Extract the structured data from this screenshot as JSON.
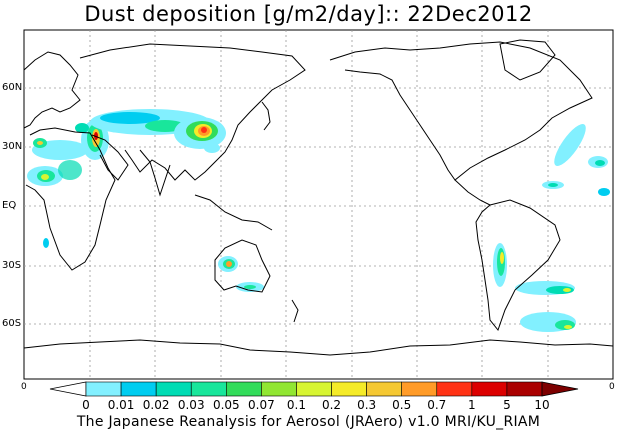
{
  "title": "Dust deposition [g/m2/day]:: 22Dec2012",
  "credit": "The Japanese Reanalysis for Aerosol (JRAero) v1.0 MRI/KU_RIAM",
  "lat_labels": [
    "60N",
    "30N",
    "EQ",
    "30S",
    "60S"
  ],
  "edge_labels": {
    "left": "0",
    "right": "0"
  },
  "colorbar": {
    "labels": [
      "0",
      "0.01",
      "0.02",
      "0.03",
      "0.05",
      "0.07",
      "0.1",
      "0.2",
      "0.3",
      "0.5",
      "0.7",
      "1",
      "5",
      "10"
    ],
    "colors": [
      "#ffffff",
      "#82f0ff",
      "#00cdf0",
      "#00dcb4",
      "#19e69b",
      "#32dc5a",
      "#91e632",
      "#d7f532",
      "#f5eb28",
      "#f5c832",
      "#ff9b28",
      "#ff3214",
      "#dc0000",
      "#aa0000",
      "#7d0000"
    ]
  }
}
